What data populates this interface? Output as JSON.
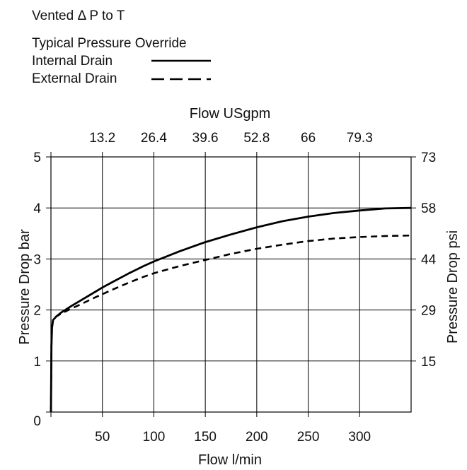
{
  "header": {
    "title": "Vented  Δ P to T",
    "legend_title": "Typical Pressure Override",
    "legend": [
      {
        "label": "Internal Drain",
        "style": "solid"
      },
      {
        "label": "External Drain",
        "style": "dashed"
      }
    ]
  },
  "chart_data": {
    "type": "line",
    "xlabel": "Flow l/min",
    "x2label": "Flow USgpm",
    "ylabel": "Pressure Drop bar",
    "y2label": "Pressure Drop psi",
    "xlim": [
      0,
      350
    ],
    "ylim": [
      0,
      5
    ],
    "x_ticks": [
      50,
      100,
      150,
      200,
      250,
      300
    ],
    "x_ticklabels": [
      "50",
      "100",
      "150",
      "200",
      "250",
      "300"
    ],
    "x2_ticks": [
      50,
      100,
      150,
      200,
      250,
      300
    ],
    "x2_ticklabels": [
      "13.2",
      "26.4",
      "39.6",
      "52.8",
      "66",
      "79.3"
    ],
    "y_ticks": [
      0,
      1,
      2,
      3,
      4,
      5
    ],
    "y_ticklabels": [
      "0",
      "1",
      "2",
      "3",
      "4",
      "5"
    ],
    "y2_ticks": [
      1,
      2,
      3,
      4,
      5
    ],
    "y2_ticklabels": [
      "15",
      "29",
      "44",
      "58",
      "73"
    ],
    "grid": true,
    "series": [
      {
        "name": "Internal Drain",
        "style": "solid",
        "x": [
          0,
          0.5,
          1,
          2,
          5,
          10,
          20,
          30,
          40,
          50,
          60,
          75,
          90,
          100,
          125,
          150,
          175,
          200,
          225,
          250,
          275,
          300,
          325,
          350
        ],
        "y": [
          0,
          1.3,
          1.65,
          1.8,
          1.87,
          1.95,
          2.08,
          2.2,
          2.32,
          2.44,
          2.55,
          2.71,
          2.86,
          2.95,
          3.15,
          3.33,
          3.48,
          3.62,
          3.74,
          3.83,
          3.9,
          3.95,
          3.99,
          4.0
        ]
      },
      {
        "name": "External Drain",
        "style": "dashed",
        "x": [
          0,
          0.5,
          1,
          2,
          5,
          10,
          20,
          30,
          40,
          50,
          60,
          75,
          90,
          100,
          125,
          150,
          175,
          200,
          225,
          250,
          275,
          300,
          325,
          350
        ],
        "y": [
          0,
          1.3,
          1.65,
          1.8,
          1.87,
          1.93,
          2.03,
          2.12,
          2.22,
          2.31,
          2.4,
          2.53,
          2.65,
          2.72,
          2.86,
          2.98,
          3.1,
          3.2,
          3.28,
          3.35,
          3.4,
          3.43,
          3.45,
          3.46
        ]
      }
    ]
  }
}
